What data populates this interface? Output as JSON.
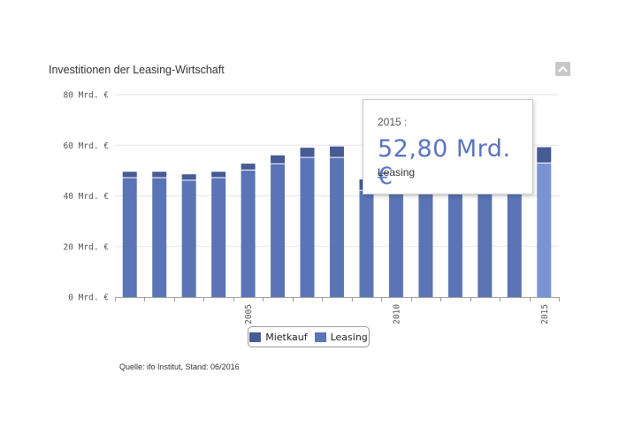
{
  "header": {
    "title": "Investitionen der Leasing-Wirtschaft"
  },
  "icons": {
    "collapse": "chevron-up-icon"
  },
  "footer": {
    "source": "Quelle: ifo Institut, Stand: 06/2016"
  },
  "tooltip": {
    "year": "2015 :",
    "value": "52,80 Mrd. €",
    "series": "Leasing"
  },
  "chart_data": {
    "type": "bar",
    "stacked": true,
    "categories": [
      "2001",
      "2002",
      "2003",
      "2004",
      "2005",
      "2006",
      "2007",
      "2008",
      "2009",
      "2010",
      "2011",
      "2012",
      "2013",
      "2014",
      "2015"
    ],
    "x_tick_labels": [
      {
        "category": "2005",
        "label": "2005"
      },
      {
        "category": "2010",
        "label": "2010"
      },
      {
        "category": "2015",
        "label": "2015"
      }
    ],
    "y_ticks": [
      {
        "value": 0,
        "label": "0 Mrd. €"
      },
      {
        "value": 20,
        "label": "20 Mrd. €"
      },
      {
        "value": 40,
        "label": "40 Mrd. €"
      },
      {
        "value": 60,
        "label": "60 Mrd. €"
      },
      {
        "value": 80,
        "label": "80 Mrd. €"
      }
    ],
    "ylim": [
      0,
      80
    ],
    "grid": true,
    "legend_position": "bottom",
    "highlighted": {
      "category": "2015",
      "series": "Leasing"
    },
    "series": [
      {
        "name": "Leasing",
        "color": "#5b74b5",
        "highlight_color": "#7a92d6",
        "values": [
          47.0,
          47.0,
          46.0,
          47.0,
          50.0,
          52.5,
          55.0,
          55.0,
          42.0,
          45.0,
          47.0,
          48.0,
          48.5,
          50.5,
          52.8
        ]
      },
      {
        "name": "Mietkauf",
        "color": "#475b94",
        "values": [
          2.5,
          2.5,
          2.5,
          2.5,
          2.7,
          3.5,
          4.0,
          4.5,
          4.5,
          5.0,
          5.5,
          6.0,
          6.0,
          6.2,
          6.4
        ]
      }
    ]
  }
}
